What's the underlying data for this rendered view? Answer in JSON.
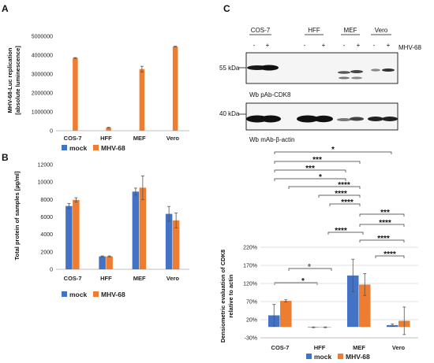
{
  "colors": {
    "mock": "#4472c4",
    "mhv": "#ed7d31"
  },
  "legend": {
    "mock": "mock",
    "mhv": "MHV-68"
  },
  "panel_a": {
    "letter": "A",
    "ylabel_line1": "MHV-68-Luc replication",
    "ylabel_line2": "[absolute luminescence]"
  },
  "panel_b": {
    "letter": "B",
    "ylabel": "Total protein of samples [µg/ml]"
  },
  "panel_c": {
    "letter": "C",
    "wb": {
      "lanes": [
        "COS-7",
        "HFF",
        "MEF",
        "Vero"
      ],
      "minus": "-",
      "plus": "+",
      "virus_label": "MHV-68",
      "blot1_marker": "55 kDa",
      "blot1_caption": "Wb pAb-CDK8",
      "blot2_marker": "40 kDa",
      "blot2_caption": "Wb mAb-β-actin"
    },
    "ylabel_line1": "Densiometric evaluation of CDK8",
    "ylabel_line2": "relative to actin"
  },
  "chart_data": [
    {
      "type": "bar",
      "panel": "A",
      "categories": [
        "COS-7",
        "HFF",
        "MEF",
        "Vero"
      ],
      "series": [
        {
          "name": "mock",
          "values": [
            0,
            0,
            0,
            0
          ],
          "errors": [
            0,
            0,
            0,
            0
          ]
        },
        {
          "name": "MHV-68",
          "values": [
            3850000,
            160000,
            3260000,
            4450000
          ],
          "errors": [
            20000,
            20000,
            150000,
            20000
          ]
        }
      ],
      "ylabel": "MHV-68-Luc replication [absolute luminescence]",
      "ylim": [
        0,
        5000000
      ],
      "yticks": [
        0,
        1000000,
        2000000,
        3000000,
        4000000,
        5000000
      ],
      "yticklabels": [
        "0",
        "1000000",
        "2000000",
        "3000000",
        "4000000",
        "5000000"
      ],
      "grid": false,
      "legend": "bottom"
    },
    {
      "type": "bar",
      "panel": "B",
      "categories": [
        "COS-7",
        "HFF",
        "MEF",
        "Vero"
      ],
      "series": [
        {
          "name": "mock",
          "values": [
            7250,
            1480,
            8900,
            6350
          ],
          "errors": [
            300,
            50,
            400,
            850
          ]
        },
        {
          "name": "MHV-68",
          "values": [
            7950,
            1480,
            9350,
            5600
          ],
          "errors": [
            250,
            50,
            1350,
            850
          ]
        }
      ],
      "ylabel": "Total protein of samples [µg/ml]",
      "ylim": [
        0,
        12000
      ],
      "yticks": [
        0,
        2000,
        4000,
        6000,
        8000,
        10000,
        12000
      ],
      "yticklabels": [
        "0",
        "2000",
        "4000",
        "6000",
        "8000",
        "10000",
        "12000"
      ],
      "grid": false,
      "legend": "bottom"
    },
    {
      "type": "bar",
      "panel": "C",
      "categories": [
        "COS-7",
        "HFF",
        "MEF",
        "Vero"
      ],
      "series": [
        {
          "name": "mock",
          "values": [
            0.32,
            -0.01,
            1.42,
            0.05
          ],
          "errors": [
            0.3,
            0.01,
            0.45,
            0.03
          ]
        },
        {
          "name": "MHV-68",
          "values": [
            0.72,
            -0.01,
            1.17,
            0.17
          ],
          "errors": [
            0.03,
            0.01,
            0.3,
            0.38
          ]
        }
      ],
      "ylabel": "Densiometric evaluation of CDK8 relative to actin",
      "ylim": [
        -0.3,
        2.2
      ],
      "yticks": [
        -0.3,
        0.2,
        0.7,
        1.2,
        1.7,
        2.2
      ],
      "yticklabels": [
        "-30%",
        "20%",
        "70%",
        "120%",
        "170%",
        "220%"
      ],
      "grid": true,
      "legend": "bottom",
      "significance": [
        "*",
        "***",
        "***",
        "*",
        "****",
        "****",
        "****",
        "***",
        "****",
        "****",
        "****",
        "****",
        "*",
        "*"
      ]
    }
  ]
}
